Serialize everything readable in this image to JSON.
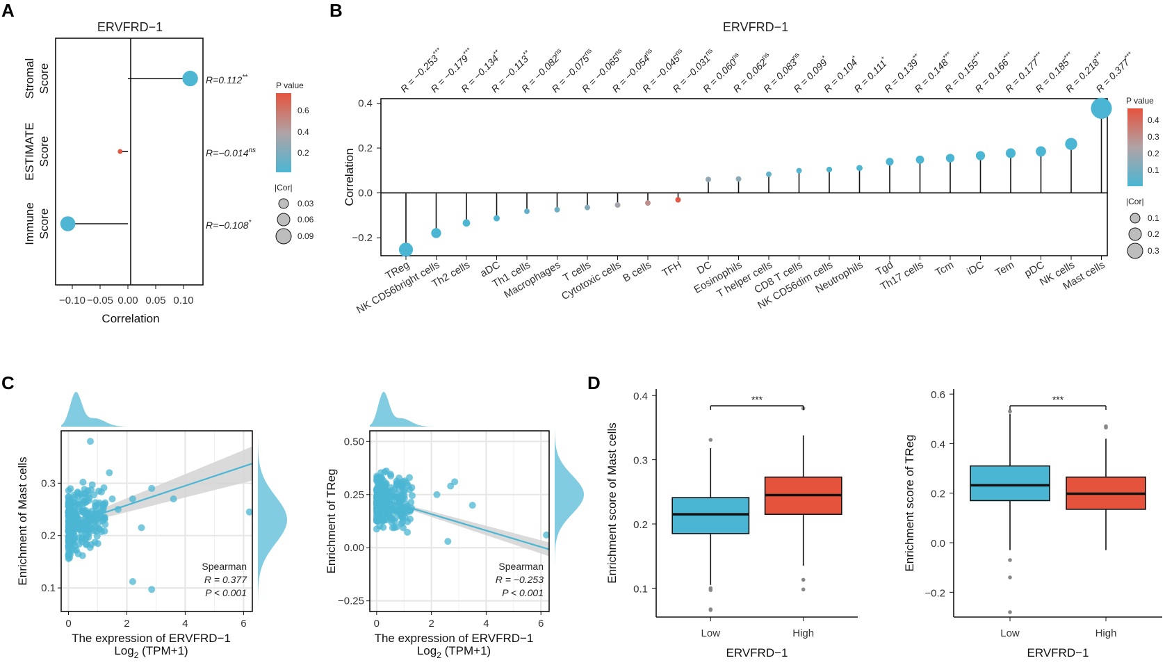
{
  "panels": {
    "A": "A",
    "B": "B",
    "C": "C",
    "D": "D"
  },
  "panelA": {
    "title": "ERVFRD−1",
    "xlabel": "Correlation",
    "categories": [
      {
        "line1": "Stromal",
        "line2": "Score",
        "R": 0.112,
        "label": "R=0.112",
        "sig": "**",
        "p": 0.004
      },
      {
        "line1": "ESTIMATE",
        "line2": "Score",
        "R": -0.014,
        "label": "R=−0.014",
        "sig": "ns",
        "p": 0.72
      },
      {
        "line1": "Immune",
        "line2": "Score",
        "R": -0.108,
        "label": "R=−0.108",
        "sig": "*",
        "p": 0.012
      }
    ],
    "xticks": [
      "−0.10",
      "−0.05",
      "0.00",
      "0.05",
      "0.10"
    ],
    "xtick_values": [
      -0.1,
      -0.05,
      0.0,
      0.05,
      0.1
    ],
    "xlim": [
      -0.13,
      0.135
    ],
    "legend_p_title": "P value",
    "legend_p_ticks": [
      "0.6",
      "0.4",
      "0.2"
    ],
    "legend_cor_title": "|Cor|",
    "legend_cor_ticks": [
      "0.03",
      "0.06",
      "0.09"
    ]
  },
  "panelB": {
    "title": "ERVFRD−1",
    "ylabel": "Correlation",
    "yticks": [
      "0.4",
      "0.2",
      "0.0",
      "−0.2"
    ],
    "ytick_values": [
      0.4,
      0.2,
      0.0,
      -0.2
    ],
    "ylim": [
      -0.28,
      0.42
    ],
    "cells": [
      {
        "name": "TReg",
        "R": -0.253,
        "label": "R = −0.253",
        "sig": "***",
        "p": 0.0001
      },
      {
        "name": "NK CD56bright cells",
        "R": -0.179,
        "label": "R = −0.179",
        "sig": "***",
        "p": 0.0001
      },
      {
        "name": "Th2 cells",
        "R": -0.134,
        "label": "R = −0.134",
        "sig": "**",
        "p": 0.002
      },
      {
        "name": "aDC",
        "R": -0.113,
        "label": "R = −0.113",
        "sig": "**",
        "p": 0.009
      },
      {
        "name": "Th1 cells",
        "R": -0.082,
        "label": "R = −0.082",
        "sig": "ns",
        "p": 0.06
      },
      {
        "name": "Macrophages",
        "R": -0.075,
        "label": "R = −0.075",
        "sig": "ns",
        "p": 0.09
      },
      {
        "name": "T cells",
        "R": -0.065,
        "label": "R = −0.065",
        "sig": "ns",
        "p": 0.14
      },
      {
        "name": "Cytotoxic cells",
        "R": -0.054,
        "label": "R = −0.054",
        "sig": "ns",
        "p": 0.22
      },
      {
        "name": "B cells",
        "R": -0.045,
        "label": "R = −0.045",
        "sig": "ns",
        "p": 0.31
      },
      {
        "name": "TFH",
        "R": -0.031,
        "label": "R = −0.031",
        "sig": "ns",
        "p": 0.48
      },
      {
        "name": "DC",
        "R": 0.06,
        "label": "R = 0.060",
        "sig": "ns",
        "p": 0.17
      },
      {
        "name": "Eosinophils",
        "R": 0.062,
        "label": "R = 0.062",
        "sig": "ns",
        "p": 0.16
      },
      {
        "name": "T helper cells",
        "R": 0.083,
        "label": "R = 0.083",
        "sig": "ns",
        "p": 0.058
      },
      {
        "name": "CD8 T cells",
        "R": 0.099,
        "label": "R = 0.099",
        "sig": "*",
        "p": 0.024
      },
      {
        "name": "NK CD56dim cells",
        "R": 0.104,
        "label": "R = 0.104",
        "sig": "*",
        "p": 0.018
      },
      {
        "name": "Neutrophils",
        "R": 0.111,
        "label": "R = 0.111",
        "sig": "*",
        "p": 0.011
      },
      {
        "name": "Tgd",
        "R": 0.139,
        "label": "R = 0.139",
        "sig": "**",
        "p": 0.001
      },
      {
        "name": "Th17 cells",
        "R": 0.148,
        "label": "R = 0.148",
        "sig": "***",
        "p": 0.0005
      },
      {
        "name": "Tcm",
        "R": 0.155,
        "label": "R = 0.155",
        "sig": "***",
        "p": 0.0004
      },
      {
        "name": "iDC",
        "R": 0.166,
        "label": "R = 0.166",
        "sig": "***",
        "p": 0.0002
      },
      {
        "name": "Tem",
        "R": 0.177,
        "label": "R = 0.177",
        "sig": "***",
        "p": 0.0001
      },
      {
        "name": "pDC",
        "R": 0.185,
        "label": "R = 0.185",
        "sig": "***",
        "p": 0.0001
      },
      {
        "name": "NK cells",
        "R": 0.218,
        "label": "R = 0.218",
        "sig": "***",
        "p": 0.0001
      },
      {
        "name": "Mast cells",
        "R": 0.377,
        "label": "R = 0.377",
        "sig": "***",
        "p": 0.0001
      }
    ],
    "legend_p_title": "P value",
    "legend_p_ticks": [
      "0.4",
      "0.3",
      "0.2",
      "0.1"
    ],
    "legend_cor_title": "|Cor|",
    "legend_cor_ticks": [
      "0.1",
      "0.2",
      "0.3"
    ]
  },
  "panelC": [
    {
      "ylabel": "Enrichment of Mast cells",
      "xlabel": "The expression of ERVFRD−1",
      "xlabel2": "Log",
      "xlabel2_sub": "2",
      "xlabel2_tail": " (TPM+1)",
      "xticks": [
        "0",
        "2",
        "4",
        "6"
      ],
      "xtick_values": [
        0,
        2,
        4,
        6
      ],
      "yticks": [
        "0.3",
        "0.2",
        "0.1"
      ],
      "ytick_values": [
        0.3,
        0.2,
        0.1
      ],
      "xlim": [
        -0.25,
        6.3
      ],
      "ylim": [
        0.055,
        0.4
      ],
      "stat1": "Spearman",
      "stat2": "R = 0.377",
      "stat3": "P < 0.001",
      "fit": {
        "intercept": 0.221,
        "slope": 0.0185
      }
    },
    {
      "ylabel": "Enrichment of TReg",
      "xlabel": "The expression of ERVFRD−1",
      "xlabel2": "Log",
      "xlabel2_sub": "2",
      "xlabel2_tail": " (TPM+1)",
      "xticks": [
        "0",
        "2",
        "4",
        "6"
      ],
      "xtick_values": [
        0,
        2,
        4,
        6
      ],
      "yticks": [
        "0.50",
        "0.25",
        "0.00",
        "−0.25"
      ],
      "ytick_values": [
        0.5,
        0.25,
        0.0,
        -0.25
      ],
      "xlim": [
        -0.25,
        6.3
      ],
      "ylim": [
        -0.3,
        0.55
      ],
      "stat1": "Spearman",
      "stat2": "R = −0.253",
      "stat3": "P < 0.001",
      "fit": {
        "intercept": 0.235,
        "slope": -0.0385
      }
    }
  ],
  "panelD": [
    {
      "ylabel": "Enrichment score of Mast cells",
      "xlabel": "ERVFRD−1",
      "sig": "***",
      "yticks": [
        "0.4",
        "0.3",
        "0.2",
        "0.1"
      ],
      "ytick_values": [
        0.4,
        0.3,
        0.2,
        0.1
      ],
      "ylim": [
        0.055,
        0.41
      ],
      "groups": [
        {
          "name": "Low",
          "color": "#4bb6d3",
          "min": 0.105,
          "q1": 0.185,
          "median": 0.215,
          "q3": 0.241,
          "max": 0.318,
          "outliers": [
            0.331,
            0.1,
            0.097,
            0.067,
            0.066
          ]
        },
        {
          "name": "High",
          "color": "#e5533d",
          "min": 0.135,
          "q1": 0.215,
          "median": 0.245,
          "q3": 0.273,
          "max": 0.338,
          "outliers": [
            0.38,
            0.113,
            0.098
          ]
        }
      ]
    },
    {
      "ylabel": "Enrichment score of TReg",
      "xlabel": "ERVFRD−1",
      "sig": "***",
      "yticks": [
        "0.6",
        "0.4",
        "0.2",
        "0.0",
        "−0.2"
      ],
      "ytick_values": [
        0.6,
        0.4,
        0.2,
        0.0,
        -0.2
      ],
      "ylim": [
        -0.3,
        0.62
      ],
      "groups": [
        {
          "name": "Low",
          "color": "#4bb6d3",
          "min": -0.03,
          "q1": 0.17,
          "median": 0.232,
          "q3": 0.31,
          "max": 0.52,
          "outliers": [
            0.53,
            -0.07,
            -0.14,
            -0.28
          ]
        },
        {
          "name": "High",
          "color": "#e5533d",
          "min": -0.03,
          "q1": 0.135,
          "median": 0.198,
          "q3": 0.265,
          "max": 0.42,
          "outliers": [
            0.47,
            0.465
          ]
        }
      ]
    }
  ],
  "colors": {
    "low_p": "#4bb6d3",
    "high_p": "#e5533d",
    "mid_p": "#a9a9a9",
    "scatter": "#4bb6d3",
    "fit": "#4bb6d3",
    "band": "#d3d3d3"
  }
}
